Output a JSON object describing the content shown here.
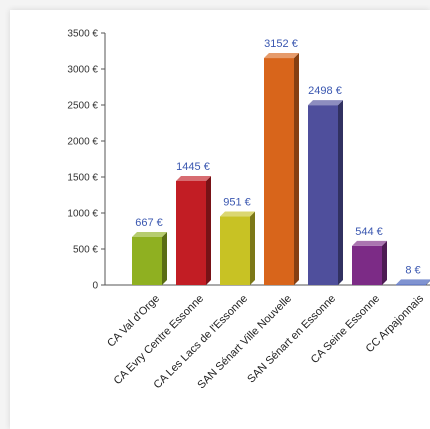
{
  "chart_data": {
    "type": "bar",
    "title": "",
    "xlabel": "",
    "ylabel": "",
    "unit": "€",
    "ylim": [
      0,
      3500
    ],
    "yticks": [
      0,
      500,
      1000,
      1500,
      2000,
      2500,
      3000,
      3500
    ],
    "ytick_labels": [
      "0",
      "500 €",
      "1000 €",
      "1500 €",
      "2000 €",
      "2500 €",
      "3000 €",
      "3500 €"
    ],
    "grid": false,
    "legend": "none",
    "categories": [
      "CA Val d'Orge",
      "CA Evry Centre Essonne",
      "CA Les Lacs de l'Essonne",
      "SAN Sénart Ville Nouvelle",
      "SAN Sénart en Essonne",
      "CA Seine Essonne",
      "CC Arpajonnais"
    ],
    "values": [
      667,
      1445,
      951,
      3152,
      2498,
      544,
      8
    ],
    "value_labels": [
      "667 €",
      "1445 €",
      "951 €",
      "3152 €",
      "2498 €",
      "544 €",
      "8 €"
    ],
    "colors": [
      "#8fb021",
      "#c21d24",
      "#c8c224",
      "#d8651b",
      "#4f4f9c",
      "#7c2b86",
      "#3b59b8"
    ],
    "label_color": "#3a57b0"
  }
}
